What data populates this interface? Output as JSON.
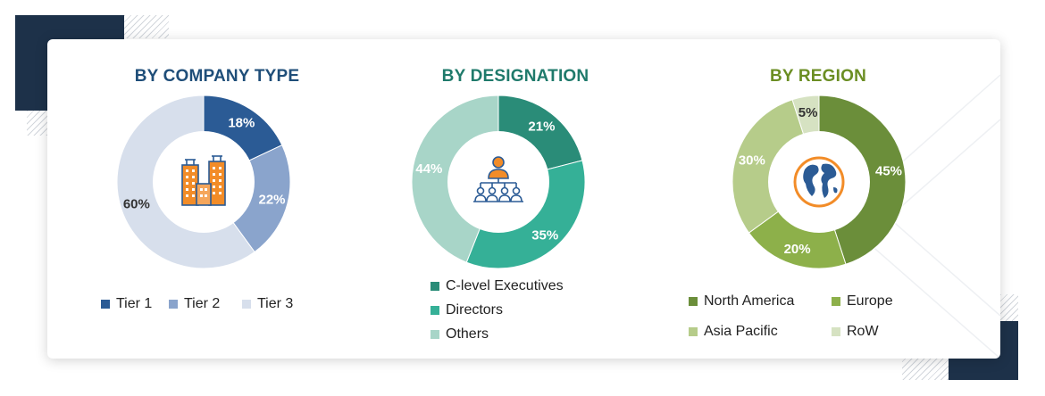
{
  "charts": [
    {
      "id": "company",
      "title": "BY COMPANY TYPE",
      "title_color": "#1f4e79",
      "icon": "buildings-icon",
      "chart_data": {
        "type": "pie",
        "title": "BY COMPANY TYPE",
        "categories": [
          "Tier 1",
          "Tier 2",
          "Tier 3"
        ],
        "values": [
          18,
          22,
          60
        ],
        "labels": [
          "18%",
          "22%",
          "60%"
        ],
        "colors": [
          "#2b5b95",
          "#8aa4cc",
          "#d7dfec"
        ],
        "legend": "bottom"
      }
    },
    {
      "id": "designation",
      "title": "BY DESIGNATION",
      "title_color": "#1f7a6b",
      "icon": "org-chart-icon",
      "chart_data": {
        "type": "pie",
        "title": "BY DESIGNATION",
        "categories": [
          "C-level Executives",
          "Directors",
          "Others"
        ],
        "values": [
          21,
          35,
          44
        ],
        "labels": [
          "21%",
          "35%",
          "44%"
        ],
        "colors": [
          "#2a8c78",
          "#35b097",
          "#a8d5c8"
        ],
        "legend": "bottom"
      }
    },
    {
      "id": "region",
      "title": "BY REGION",
      "title_color": "#6b8e23",
      "icon": "globe-icon",
      "chart_data": {
        "type": "pie",
        "title": "BY REGION",
        "categories": [
          "North America",
          "Europe",
          "Asia Pacific",
          "RoW"
        ],
        "values": [
          45,
          20,
          30,
          5
        ],
        "labels": [
          "45%",
          "20%",
          "30%",
          "5%"
        ],
        "colors": [
          "#6b8e3a",
          "#8db04a",
          "#b6cc8a",
          "#d6e2c2"
        ],
        "legend": "bottom"
      }
    }
  ]
}
